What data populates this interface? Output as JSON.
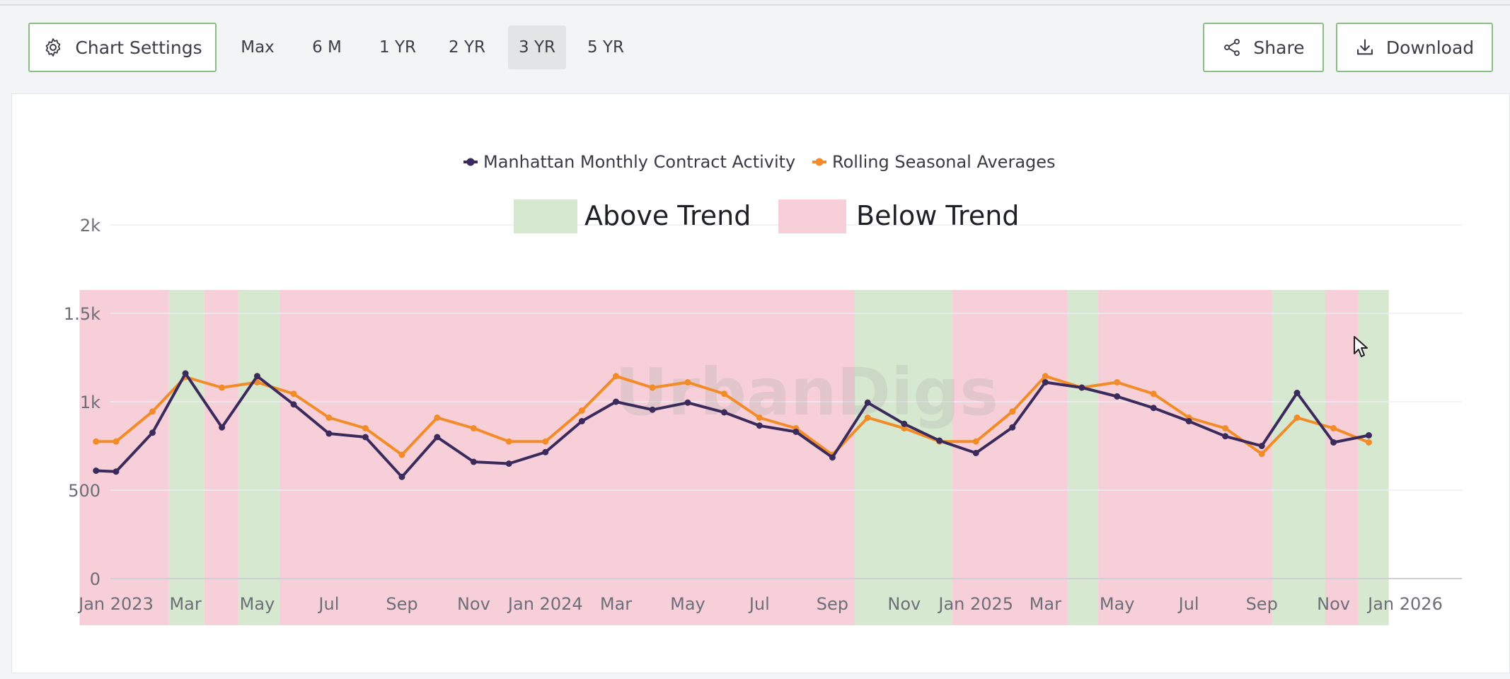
{
  "toolbar": {
    "settings_label": "Chart Settings",
    "ranges": [
      {
        "label": "Max",
        "active": false
      },
      {
        "label": "6 M",
        "active": false
      },
      {
        "label": "1 YR",
        "active": false
      },
      {
        "label": "2 YR",
        "active": false
      },
      {
        "label": "3 YR",
        "active": true
      },
      {
        "label": "5 YR",
        "active": false
      }
    ],
    "share_label": "Share",
    "download_label": "Download"
  },
  "icons": {
    "settings": "gear-icon",
    "share": "share-icon",
    "download": "download-icon"
  },
  "watermark": "UrbanDigs",
  "colors": {
    "contract_activity": "#3b2a5c",
    "rolling_average": "#f28c28",
    "above_trend": "#d6e8cf",
    "below_trend": "#f6cfd8"
  },
  "chart_data": {
    "type": "line",
    "x_tick_labels": [
      "Jan 2023",
      "Mar",
      "May",
      "Jul",
      "Sep",
      "Nov",
      "Jan 2024",
      "Mar",
      "May",
      "Jul",
      "Sep",
      "Nov",
      "Jan 2025",
      "Mar",
      "May",
      "Jul",
      "Sep",
      "Nov",
      "Jan 2026"
    ],
    "y_tick_labels": [
      "0",
      "500",
      "1k",
      "1.5k",
      "2k"
    ],
    "ylim": [
      0,
      2000
    ],
    "grid": true,
    "legend_placement": "top-center",
    "legend": [
      "Manhattan Monthly Contract Activity",
      "Rolling Seasonal Averages"
    ],
    "band_legend": [
      "Above Trend",
      "Below Trend"
    ],
    "x": [
      "2022-12-15",
      "2023-01-01",
      "2023-02-01",
      "2023-03-01",
      "2023-04-01",
      "2023-05-01",
      "2023-06-01",
      "2023-07-01",
      "2023-08-01",
      "2023-09-01",
      "2023-10-01",
      "2023-11-01",
      "2023-12-01",
      "2024-01-01",
      "2024-02-01",
      "2024-03-01",
      "2024-04-01",
      "2024-05-01",
      "2024-06-01",
      "2024-07-01",
      "2024-08-01",
      "2024-09-01",
      "2024-10-01",
      "2024-11-01",
      "2024-12-01",
      "2025-01-01",
      "2025-02-01",
      "2025-03-01",
      "2025-04-01",
      "2025-05-01",
      "2025-06-01",
      "2025-07-01",
      "2025-08-01",
      "2025-09-01",
      "2025-10-01",
      "2025-11-01",
      "2025-12-01"
    ],
    "series": [
      {
        "name": "Manhattan Monthly Contract Activity",
        "values": [
          610,
          605,
          825,
          1160,
          855,
          1145,
          985,
          820,
          800,
          575,
          800,
          660,
          650,
          715,
          890,
          1000,
          955,
          995,
          940,
          865,
          830,
          685,
          995,
          875,
          780,
          710,
          855,
          1110,
          1080,
          1030,
          965,
          890,
          805,
          750,
          1050,
          770,
          810
        ]
      },
      {
        "name": "Rolling Seasonal Averages",
        "values": [
          775,
          775,
          945,
          1140,
          1080,
          1110,
          1045,
          910,
          850,
          700,
          910,
          850,
          775,
          775,
          950,
          1145,
          1080,
          1110,
          1045,
          910,
          850,
          700,
          910,
          850,
          775,
          775,
          945,
          1145,
          1080,
          1110,
          1045,
          910,
          850,
          705,
          910,
          850,
          770
        ]
      }
    ],
    "trend_bands": [
      {
        "start": "2022-12-01",
        "end": "2023-02-15",
        "trend": "below"
      },
      {
        "start": "2023-02-15",
        "end": "2023-03-17",
        "trend": "above"
      },
      {
        "start": "2023-03-17",
        "end": "2023-04-15",
        "trend": "below"
      },
      {
        "start": "2023-04-15",
        "end": "2023-05-20",
        "trend": "above"
      },
      {
        "start": "2023-05-20",
        "end": "2024-09-20",
        "trend": "below"
      },
      {
        "start": "2024-09-20",
        "end": "2024-12-12",
        "trend": "above"
      },
      {
        "start": "2024-12-12",
        "end": "2025-03-20",
        "trend": "below"
      },
      {
        "start": "2025-03-20",
        "end": "2025-04-15",
        "trend": "above"
      },
      {
        "start": "2025-04-15",
        "end": "2025-09-10",
        "trend": "below"
      },
      {
        "start": "2025-09-10",
        "end": "2025-10-25",
        "trend": "above"
      },
      {
        "start": "2025-10-25",
        "end": "2025-11-22",
        "trend": "below"
      },
      {
        "start": "2025-11-22",
        "end": "2025-12-18",
        "trend": "above"
      }
    ]
  }
}
